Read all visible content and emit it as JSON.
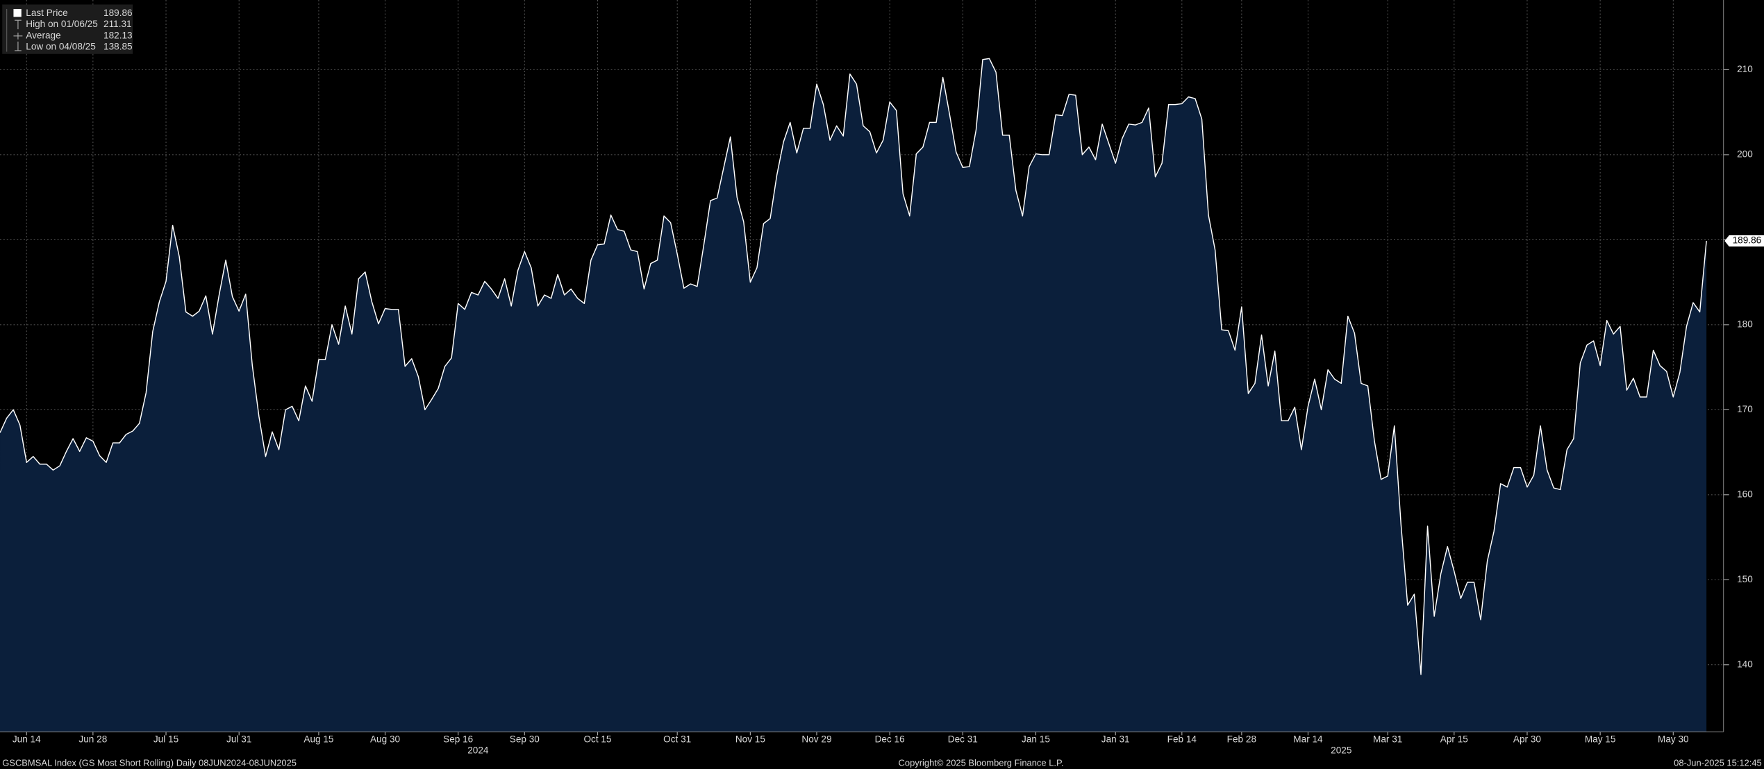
{
  "chart_data": {
    "type": "area",
    "legend": [
      {
        "label": "Last Price",
        "value": "189.86"
      },
      {
        "label": "High on 01/06/25",
        "value": "211.31"
      },
      {
        "label": "Average",
        "value": "182.13"
      },
      {
        "label": "Low on 04/08/25",
        "value": "138.85"
      }
    ],
    "series": [
      {
        "name": "Last Price",
        "color": "#ffffff",
        "fill": "#0b1f3b",
        "values": [
          167.3,
          169.0,
          170.0,
          168.2,
          163.8,
          164.5,
          163.6,
          163.6,
          162.9,
          163.4,
          165.1,
          166.6,
          165.1,
          166.7,
          166.3,
          164.6,
          163.8,
          166.1,
          166.1,
          167.1,
          167.5,
          168.4,
          172.0,
          179.2,
          182.7,
          185.1,
          191.7,
          188.0,
          181.5,
          181.0,
          181.6,
          183.4,
          178.9,
          183.5,
          187.6,
          183.3,
          181.6,
          183.6,
          175.2,
          169.2,
          164.5,
          167.4,
          165.3,
          170.0,
          170.4,
          168.7,
          172.8,
          171.0,
          175.9,
          175.9,
          180.0,
          177.7,
          182.2,
          178.9,
          185.4,
          186.2,
          182.7,
          180.1,
          181.9,
          181.8,
          181.8,
          175.1,
          176.0,
          173.9,
          170.0,
          171.2,
          172.5,
          175.1,
          176.1,
          182.5,
          181.8,
          183.8,
          183.5,
          185.1,
          184.2,
          183.1,
          185.4,
          182.2,
          186.4,
          188.6,
          186.7,
          182.2,
          183.5,
          183.1,
          185.9,
          183.5,
          184.2,
          183.1,
          182.5,
          187.6,
          189.4,
          189.5,
          192.9,
          191.2,
          191.0,
          188.8,
          188.6,
          184.2,
          187.2,
          187.6,
          192.8,
          192.0,
          188.3,
          184.3,
          184.8,
          184.5,
          189.4,
          194.6,
          194.9,
          198.5,
          202.1,
          195.0,
          192.1,
          185.0,
          186.7,
          191.9,
          192.5,
          197.6,
          201.5,
          203.8,
          200.2,
          203.1,
          203.1,
          208.3,
          205.9,
          201.7,
          203.4,
          202.2,
          209.5,
          208.3,
          203.4,
          202.7,
          200.2,
          201.7,
          206.2,
          205.2,
          195.4,
          192.8,
          200.1,
          200.9,
          203.8,
          203.8,
          209.1,
          204.8,
          200.3,
          198.5,
          198.6,
          202.9,
          211.2,
          211.31,
          209.7,
          202.3,
          202.3,
          195.8,
          192.8,
          198.6,
          200.1,
          200.0,
          200.0,
          204.7,
          204.6,
          207.1,
          207.0,
          200.0,
          200.9,
          199.4,
          203.6,
          201.3,
          199.0,
          201.9,
          203.6,
          203.5,
          203.8,
          205.5,
          197.4,
          199.0,
          205.9,
          205.9,
          206.0,
          206.8,
          206.6,
          204.2,
          192.9,
          188.8,
          179.4,
          179.3,
          177.0,
          182.1,
          171.9,
          173.1,
          178.8,
          172.8,
          176.9,
          168.7,
          168.7,
          170.3,
          165.3,
          170.4,
          173.6,
          170.0,
          174.7,
          173.6,
          173.1,
          181.0,
          179.0,
          173.1,
          172.8,
          166.3,
          161.8,
          162.2,
          168.1,
          156.5,
          147.0,
          148.3,
          138.85,
          156.3,
          145.7,
          150.7,
          153.9,
          151.0,
          147.8,
          149.7,
          149.7,
          145.3,
          152.2,
          155.7,
          161.3,
          160.9,
          163.2,
          163.2,
          160.9,
          162.3,
          168.1,
          162.9,
          160.8,
          160.6,
          165.3,
          166.6,
          175.5,
          177.6,
          178.1,
          175.2,
          180.5,
          178.9,
          179.8,
          172.3,
          173.7,
          171.5,
          171.5,
          177.0,
          175.2,
          174.5,
          171.5,
          174.4,
          179.8,
          182.6,
          181.5,
          189.86
        ]
      }
    ],
    "xlim": [
      0,
      259.4
    ],
    "xticks": [
      {
        "value": 4,
        "label": "Jun 14"
      },
      {
        "value": 14,
        "label": "Jun 28"
      },
      {
        "value": 25,
        "label": "Jul 15"
      },
      {
        "value": 36,
        "label": "Jul 31"
      },
      {
        "value": 48,
        "label": "Aug 15"
      },
      {
        "value": 58,
        "label": "Aug 30"
      },
      {
        "value": 69,
        "label": "Sep 16"
      },
      {
        "value": 79,
        "label": "Sep 30"
      },
      {
        "value": 90,
        "label": "Oct 15"
      },
      {
        "value": 102,
        "label": "Oct 31"
      },
      {
        "value": 113,
        "label": "Nov 15"
      },
      {
        "value": 123,
        "label": "Nov 29"
      },
      {
        "value": 134,
        "label": "Dec 16"
      },
      {
        "value": 145,
        "label": "Dec 31"
      },
      {
        "value": 156,
        "label": "Jan 15"
      },
      {
        "value": 168,
        "label": "Jan 31"
      },
      {
        "value": 178,
        "label": "Feb 14"
      },
      {
        "value": 187,
        "label": "Feb 28"
      },
      {
        "value": 197,
        "label": "Mar 14"
      },
      {
        "value": 209,
        "label": "Mar 31"
      },
      {
        "value": 219,
        "label": "Apr 15"
      },
      {
        "value": 230,
        "label": "Apr 30"
      },
      {
        "value": 241,
        "label": "May 15"
      },
      {
        "value": 252,
        "label": "May 30"
      }
    ],
    "x_year_labels": [
      {
        "value": 72,
        "label": "2024"
      },
      {
        "value": 202,
        "label": "2025"
      }
    ],
    "ylim": [
      132.1,
      218.2
    ],
    "yticks": [
      140,
      150,
      160,
      170,
      180,
      190,
      200,
      210
    ],
    "grid": true,
    "source": "GSCBMSAL Index (GS Most Short Rolling)  Daily 08JUN2024-08JUN2025",
    "copyright": "Copyright© 2025 Bloomberg Finance L.P.",
    "timestamp": "08-Jun-2025 15:12:45"
  }
}
